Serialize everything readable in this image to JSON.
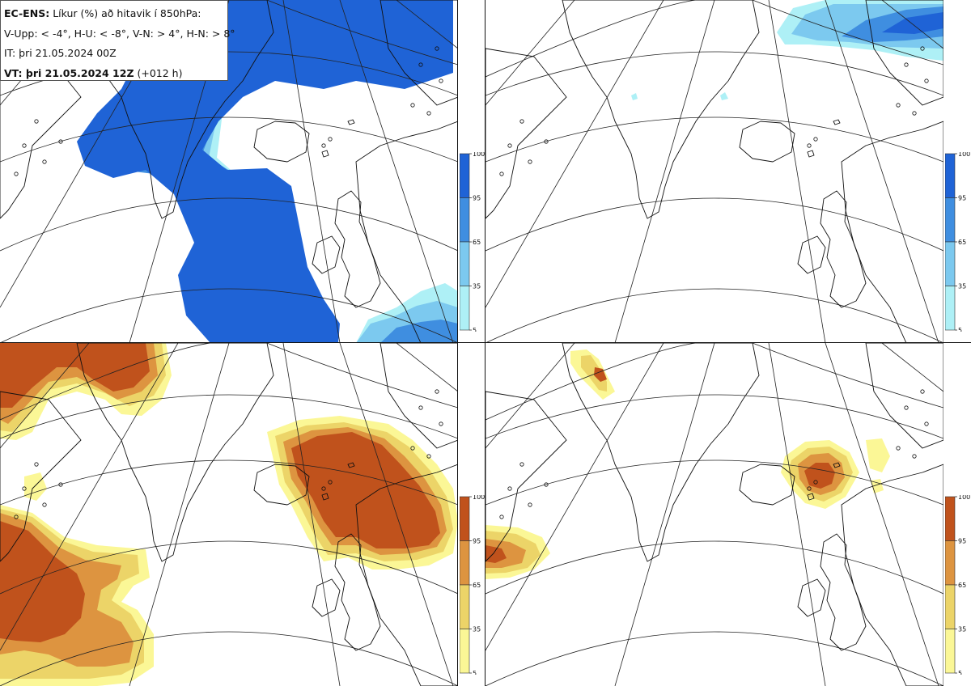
{
  "info": {
    "model": "EC-ENS:",
    "title": "Líkur (%) að hitavik í 850hPa:",
    "thresholds": "V-Upp: < -4°, H-U: < -8°, V-N: > 4°, H-N: > 8°",
    "it_label": "IT: þri 21.05.2024 00Z",
    "vt_prefix": "VT: þri 21.05.2024 12Z",
    "vt_suffix": "(+012 h)"
  },
  "panels": [
    {
      "id": "V-Upp",
      "description": "probability temperature anomaly < -4",
      "palette": "blue"
    },
    {
      "id": "H-U",
      "description": "probability temperature anomaly < -8",
      "palette": "blue"
    },
    {
      "id": "V-N",
      "description": "probability temperature anomaly > 4",
      "palette": "orange"
    },
    {
      "id": "H-N",
      "description": "probability temperature anomaly > 8",
      "palette": "orange"
    }
  ],
  "colorbar": {
    "ticks": [
      "100",
      "95",
      "65",
      "35",
      "5"
    ],
    "cold_colors": [
      "#1f63d6",
      "#3f8ee0",
      "#7cc9ef",
      "#aef0f6"
    ],
    "warm_colors": [
      "#c0521c",
      "#dd9440",
      "#ecd468",
      "#fbf796"
    ]
  }
}
